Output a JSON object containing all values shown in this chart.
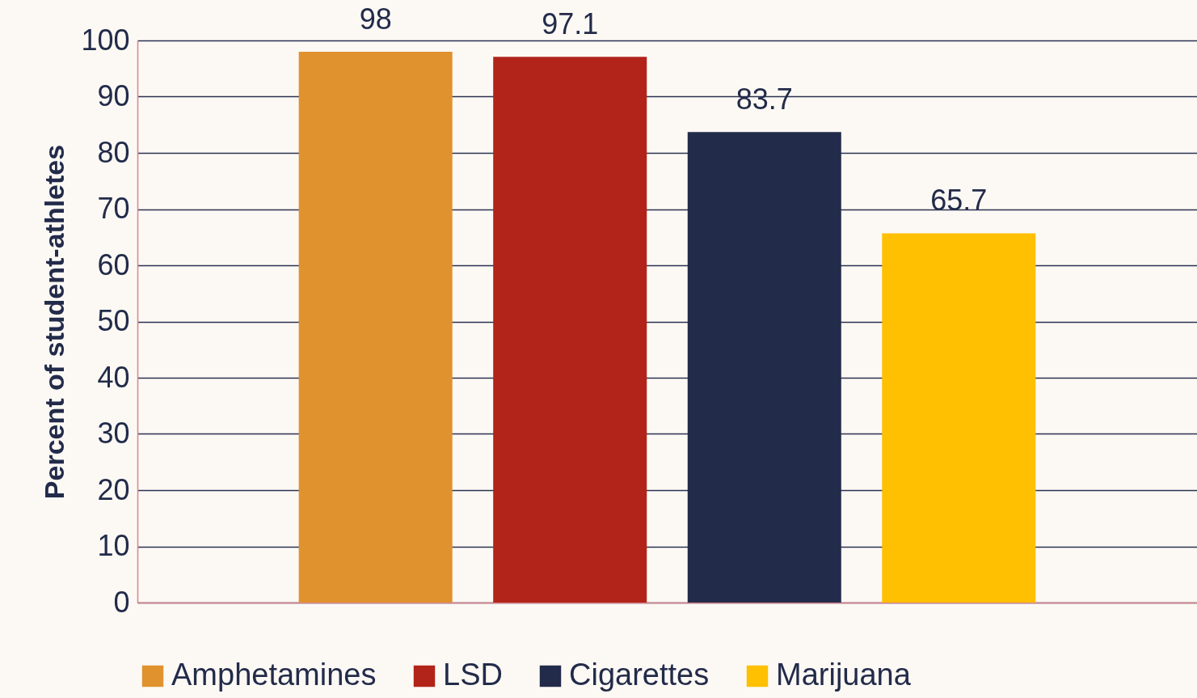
{
  "chart_data": {
    "type": "bar",
    "ylabel": "Percent of student-athletes",
    "categories": [
      null
    ],
    "series": [
      {
        "name": "Amphetamines",
        "color": "#e0922f",
        "values": [
          98
        ]
      },
      {
        "name": "LSD",
        "color": "#b22319",
        "values": [
          97.1
        ]
      },
      {
        "name": "Cigarettes",
        "color": "#232b4a",
        "values": [
          83.7
        ]
      },
      {
        "name": "Marijuana",
        "color": "#fec000",
        "values": [
          65.7
        ]
      }
    ],
    "ylim": [
      0,
      100
    ],
    "yticks": [
      0,
      10,
      20,
      30,
      40,
      50,
      60,
      70,
      80,
      90,
      100
    ],
    "grid": "y",
    "legend": "bottom",
    "data_labels": true
  }
}
